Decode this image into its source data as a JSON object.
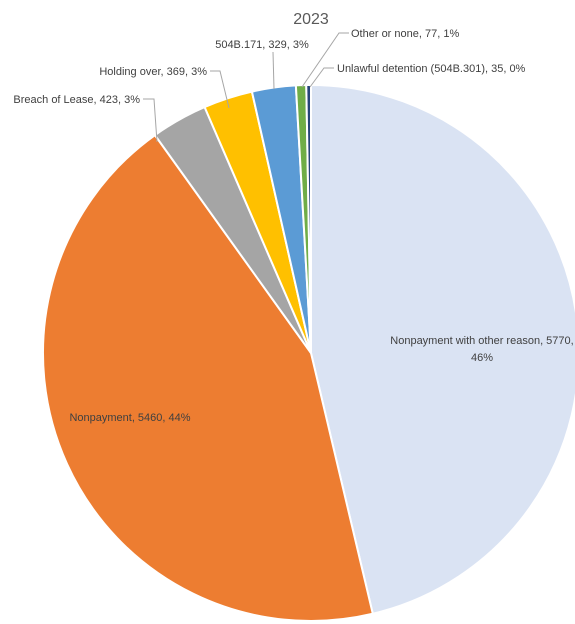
{
  "chart_data": {
    "type": "pie",
    "title": "2023",
    "slices": [
      {
        "label": "Nonpayment with other reason",
        "value": 5770,
        "percent": "46%",
        "color": "#dae3f3"
      },
      {
        "label": "Nonpayment",
        "value": 5460,
        "percent": "44%",
        "color": "#ed7d31"
      },
      {
        "label": "Breach of Lease",
        "value": 423,
        "percent": "3%",
        "color": "#a5a5a5"
      },
      {
        "label": "Holding over",
        "value": 369,
        "percent": "3%",
        "color": "#ffc000"
      },
      {
        "label": "504B.171",
        "value": 329,
        "percent": "3%",
        "color": "#5b9bd5"
      },
      {
        "label": "Other or none",
        "value": 77,
        "percent": "1%",
        "color": "#70ad47"
      },
      {
        "label": "Unlawful detention (504B.301)",
        "value": 35,
        "percent": "0%",
        "color": "#264478"
      }
    ],
    "legend": "none",
    "start_angle": "top, clockwise"
  }
}
